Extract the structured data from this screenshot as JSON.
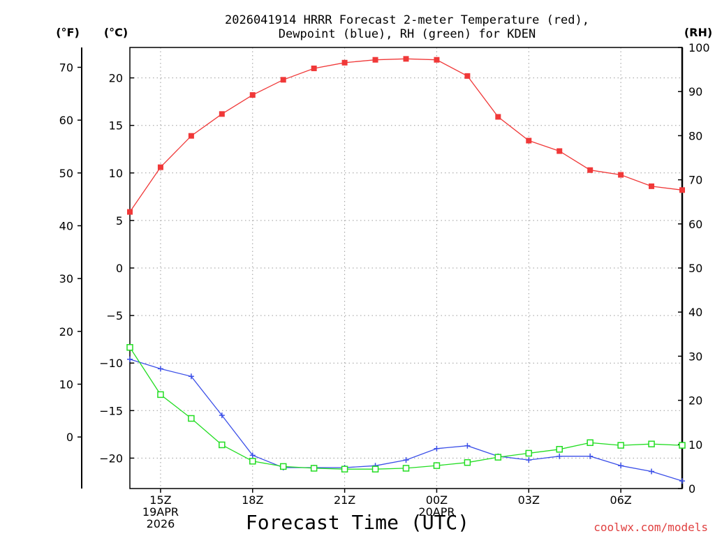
{
  "chart_data": {
    "type": "line",
    "title_lines": [
      "2026041914 HRRR Forecast 2-meter Temperature (red),",
      "Dewpoint (blue), RH (green) for KDEN"
    ],
    "xlabel": "Forecast Time (UTC)",
    "credit": "coolwx.com/models",
    "credit_color": "#e04040",
    "units": {
      "fahrenheit": "(°F)",
      "celsius": "(°C)",
      "rh": "(RH)"
    },
    "x_range": [
      0,
      18
    ],
    "x_ticks": [
      {
        "x": 1,
        "lines": [
          "15Z",
          "19APR",
          "2026"
        ]
      },
      {
        "x": 4,
        "lines": [
          "18Z"
        ]
      },
      {
        "x": 7,
        "lines": [
          "21Z"
        ]
      },
      {
        "x": 10,
        "lines": [
          "00Z",
          "20APR"
        ]
      },
      {
        "x": 13,
        "lines": [
          "03Z"
        ]
      },
      {
        "x": 16,
        "lines": [
          "06Z"
        ]
      }
    ],
    "celsius_axis": {
      "range": [
        -23.2,
        23.2
      ],
      "ticks": [
        20,
        15,
        10,
        5,
        0,
        -5,
        -10,
        -15,
        -20
      ],
      "tick_labels": [
        "20",
        "15",
        "10",
        "5",
        "0",
        "−5",
        "−10",
        "−15",
        "−20"
      ]
    },
    "fahrenheit_axis": {
      "ticks": [
        70,
        60,
        50,
        40,
        30,
        20,
        10,
        0
      ],
      "tick_labels": [
        "70",
        "60",
        "50",
        "40",
        "30",
        "20",
        "10",
        "0"
      ]
    },
    "rh_axis": {
      "range": [
        0,
        100
      ],
      "ticks": [
        100,
        90,
        80,
        70,
        60,
        50,
        40,
        30,
        20,
        10,
        0
      ],
      "tick_labels": [
        "100",
        "90",
        "80",
        "70",
        "60",
        "50",
        "40",
        "30",
        "20",
        "10",
        "0"
      ]
    },
    "series": [
      {
        "name": "2-meter Temperature",
        "axis": "celsius",
        "color": "#f03838",
        "marker": "filled-square",
        "x": [
          0,
          1,
          2,
          3,
          4,
          5,
          6,
          7,
          8,
          9,
          10,
          11,
          12,
          13,
          14,
          15,
          16,
          17,
          18
        ],
        "values": [
          5.9,
          10.6,
          13.9,
          16.2,
          18.2,
          19.8,
          21.0,
          21.6,
          21.9,
          22.0,
          21.9,
          20.2,
          15.9,
          13.4,
          12.3,
          10.3,
          9.8,
          8.6,
          8.2
        ]
      },
      {
        "name": "Dewpoint",
        "axis": "celsius",
        "color": "#3b4fe8",
        "marker": "plus",
        "x": [
          0,
          1,
          2,
          3,
          4,
          5,
          6,
          7,
          8,
          9,
          10,
          11,
          12,
          13,
          14,
          15,
          16,
          17,
          18
        ],
        "values": [
          -9.6,
          -10.6,
          -11.4,
          -15.5,
          -19.7,
          -21.0,
          -21.0,
          -21.0,
          -20.8,
          -20.2,
          -19.0,
          -18.7,
          -19.8,
          -20.2,
          -19.8,
          -19.8,
          -20.8,
          -21.4,
          -22.4
        ]
      },
      {
        "name": "RH",
        "axis": "rh",
        "color": "#22dd22",
        "marker": "open-square",
        "x": [
          0,
          1,
          2,
          3,
          4,
          5,
          6,
          7,
          8,
          9,
          10,
          11,
          12,
          13,
          14,
          15,
          16,
          17,
          18
        ],
        "values": [
          32.0,
          21.3,
          15.9,
          9.9,
          6.2,
          5.0,
          4.6,
          4.4,
          4.4,
          4.6,
          5.2,
          5.9,
          7.1,
          8.0,
          8.9,
          10.4,
          9.8,
          10.1,
          9.8
        ]
      }
    ],
    "grid": true,
    "legend": "none (series colors named in title)"
  }
}
